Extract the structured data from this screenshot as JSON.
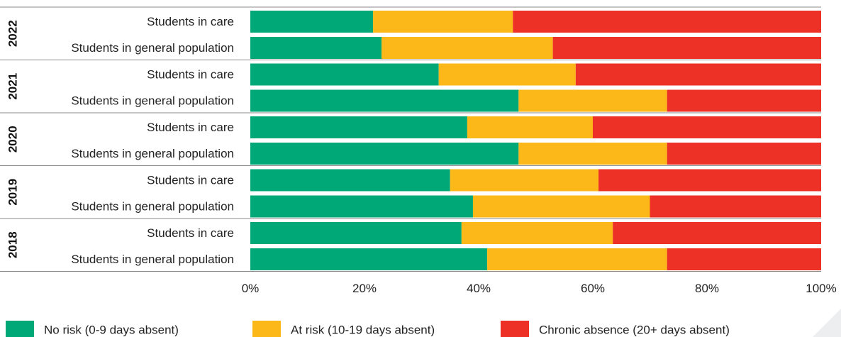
{
  "chart_data": {
    "type": "bar",
    "orientation": "horizontal",
    "stacked": true,
    "groups": [
      {
        "label": "2022",
        "rows": [
          {
            "label": "Students in care",
            "values": [
              21.5,
              24.5,
              54
            ]
          },
          {
            "label": "Students in general population",
            "values": [
              23,
              30,
              47
            ]
          }
        ]
      },
      {
        "label": "2021",
        "rows": [
          {
            "label": "Students in care",
            "values": [
              33,
              24,
              43
            ]
          },
          {
            "label": "Students in general population",
            "values": [
              47,
              26,
              27
            ]
          }
        ]
      },
      {
        "label": "2020",
        "rows": [
          {
            "label": "Students in care",
            "values": [
              38,
              22,
              40
            ]
          },
          {
            "label": "Students in general population",
            "values": [
              47,
              26,
              27
            ]
          }
        ]
      },
      {
        "label": "2019",
        "rows": [
          {
            "label": "Students in care",
            "values": [
              35,
              26,
              39
            ]
          },
          {
            "label": "Students in general population",
            "values": [
              39,
              31,
              30
            ]
          }
        ]
      },
      {
        "label": "2018",
        "rows": [
          {
            "label": "Students in care",
            "values": [
              37,
              26.5,
              36.5
            ]
          },
          {
            "label": "Students in general population",
            "values": [
              41.5,
              31.5,
              27
            ]
          }
        ]
      }
    ],
    "series": [
      {
        "name": "No risk (0-9 days absent)",
        "color": "#00a878"
      },
      {
        "name": "At risk (10-19 days absent)",
        "color": "#fbb818"
      },
      {
        "name": "Chronic absence (20+ days absent)",
        "color": "#ee3127"
      }
    ],
    "xlim": [
      0,
      100
    ],
    "xticks": [
      "0%",
      "20%",
      "40%",
      "60%",
      "80%",
      "100%"
    ],
    "title": "",
    "xlabel": "",
    "ylabel": "",
    "grid": false,
    "legend_position": "bottom"
  }
}
